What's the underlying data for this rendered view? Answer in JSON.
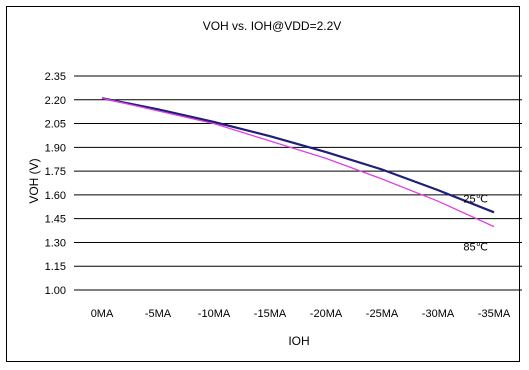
{
  "chart_data": {
    "type": "line",
    "title": "VOH vs. IOH@VDD=2.2V",
    "xlabel": "IOH",
    "ylabel": "VOH (V)",
    "categories": [
      "0MA",
      "-5MA",
      "-10MA",
      "-15MA",
      "-20MA",
      "-25MA",
      "-30MA",
      "-35MA"
    ],
    "ylim": [
      1.0,
      2.35
    ],
    "yticks": [
      "2.35",
      "2.20",
      "2.05",
      "1.90",
      "1.75",
      "1.60",
      "1.45",
      "1.30",
      "1.15",
      "1.00"
    ],
    "grid": true,
    "series": [
      {
        "name": "25℃",
        "color": "#1f1f7a",
        "values": [
          2.21,
          2.14,
          2.06,
          1.97,
          1.87,
          1.76,
          1.63,
          1.49
        ]
      },
      {
        "name": "85℃",
        "color": "#e040e0",
        "values": [
          2.21,
          2.13,
          2.05,
          1.94,
          1.83,
          1.7,
          1.56,
          1.4
        ]
      }
    ]
  }
}
